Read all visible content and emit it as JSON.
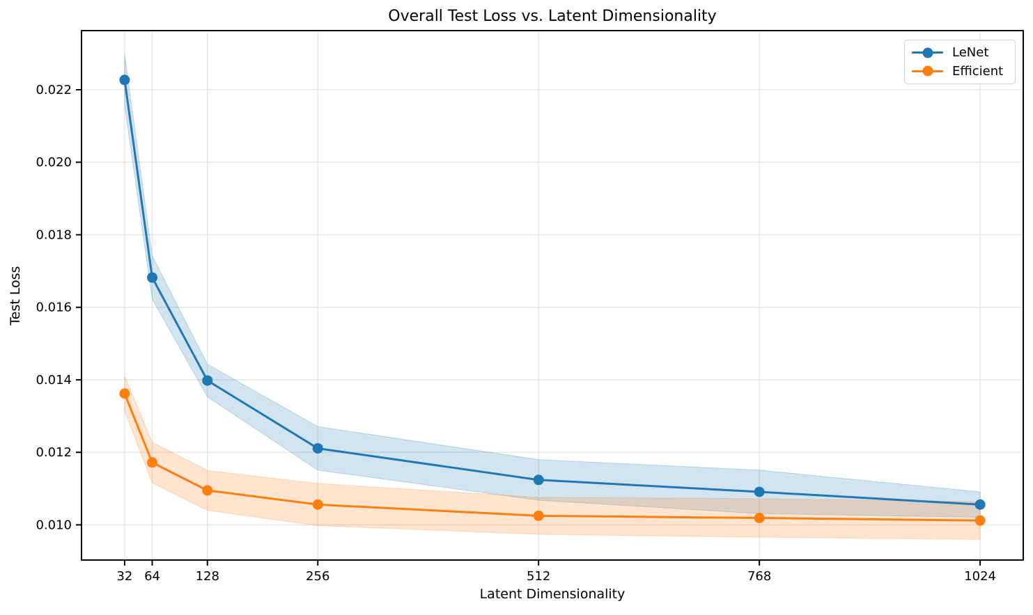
{
  "chart_data": {
    "type": "line",
    "title": "Overall Test Loss vs. Latent Dimensionality",
    "xlabel": "Latent Dimensionality",
    "ylabel": "Test Loss",
    "x": [
      32,
      64,
      128,
      256,
      512,
      768,
      1024
    ],
    "xtick_labels": [
      "32",
      "64",
      "128",
      "256",
      "512",
      "768",
      "1024"
    ],
    "ytick_values": [
      0.01,
      0.012,
      0.014,
      0.016,
      0.018,
      0.02,
      0.022
    ],
    "ytick_labels": [
      "0.010",
      "0.012",
      "0.014",
      "0.016",
      "0.018",
      "0.020",
      "0.022"
    ],
    "xlim": [
      -18,
      1074
    ],
    "ylim": [
      0.00903,
      0.02363
    ],
    "grid": true,
    "legend_position": "upper right",
    "series": [
      {
        "name": "LeNet",
        "color": "#1f77b4",
        "marker": "circle",
        "values": [
          0.02227,
          0.01682,
          0.01398,
          0.01211,
          0.01124,
          0.01091,
          0.01056
        ],
        "band_upper": [
          0.02297,
          0.01742,
          0.01443,
          0.01271,
          0.0118,
          0.01151,
          0.01091
        ],
        "band_lower": [
          0.02157,
          0.01622,
          0.01353,
          0.01151,
          0.01068,
          0.01031,
          0.01021
        ]
      },
      {
        "name": "Efficient",
        "color": "#ff7f0e",
        "marker": "circle",
        "values": [
          0.01362,
          0.01172,
          0.01095,
          0.01056,
          0.01025,
          0.01019,
          0.01012
        ],
        "band_upper": [
          0.0141,
          0.01228,
          0.0115,
          0.01114,
          0.01076,
          0.01072,
          0.01064
        ],
        "band_lower": [
          0.01314,
          0.01116,
          0.0104,
          0.00998,
          0.00974,
          0.00966,
          0.0096
        ]
      }
    ],
    "style": {
      "grid_color": "#e4e4e4",
      "spine_color": "#000000",
      "band_opacity": 0.2,
      "line_width": 3,
      "marker_radius": 7.5
    }
  }
}
